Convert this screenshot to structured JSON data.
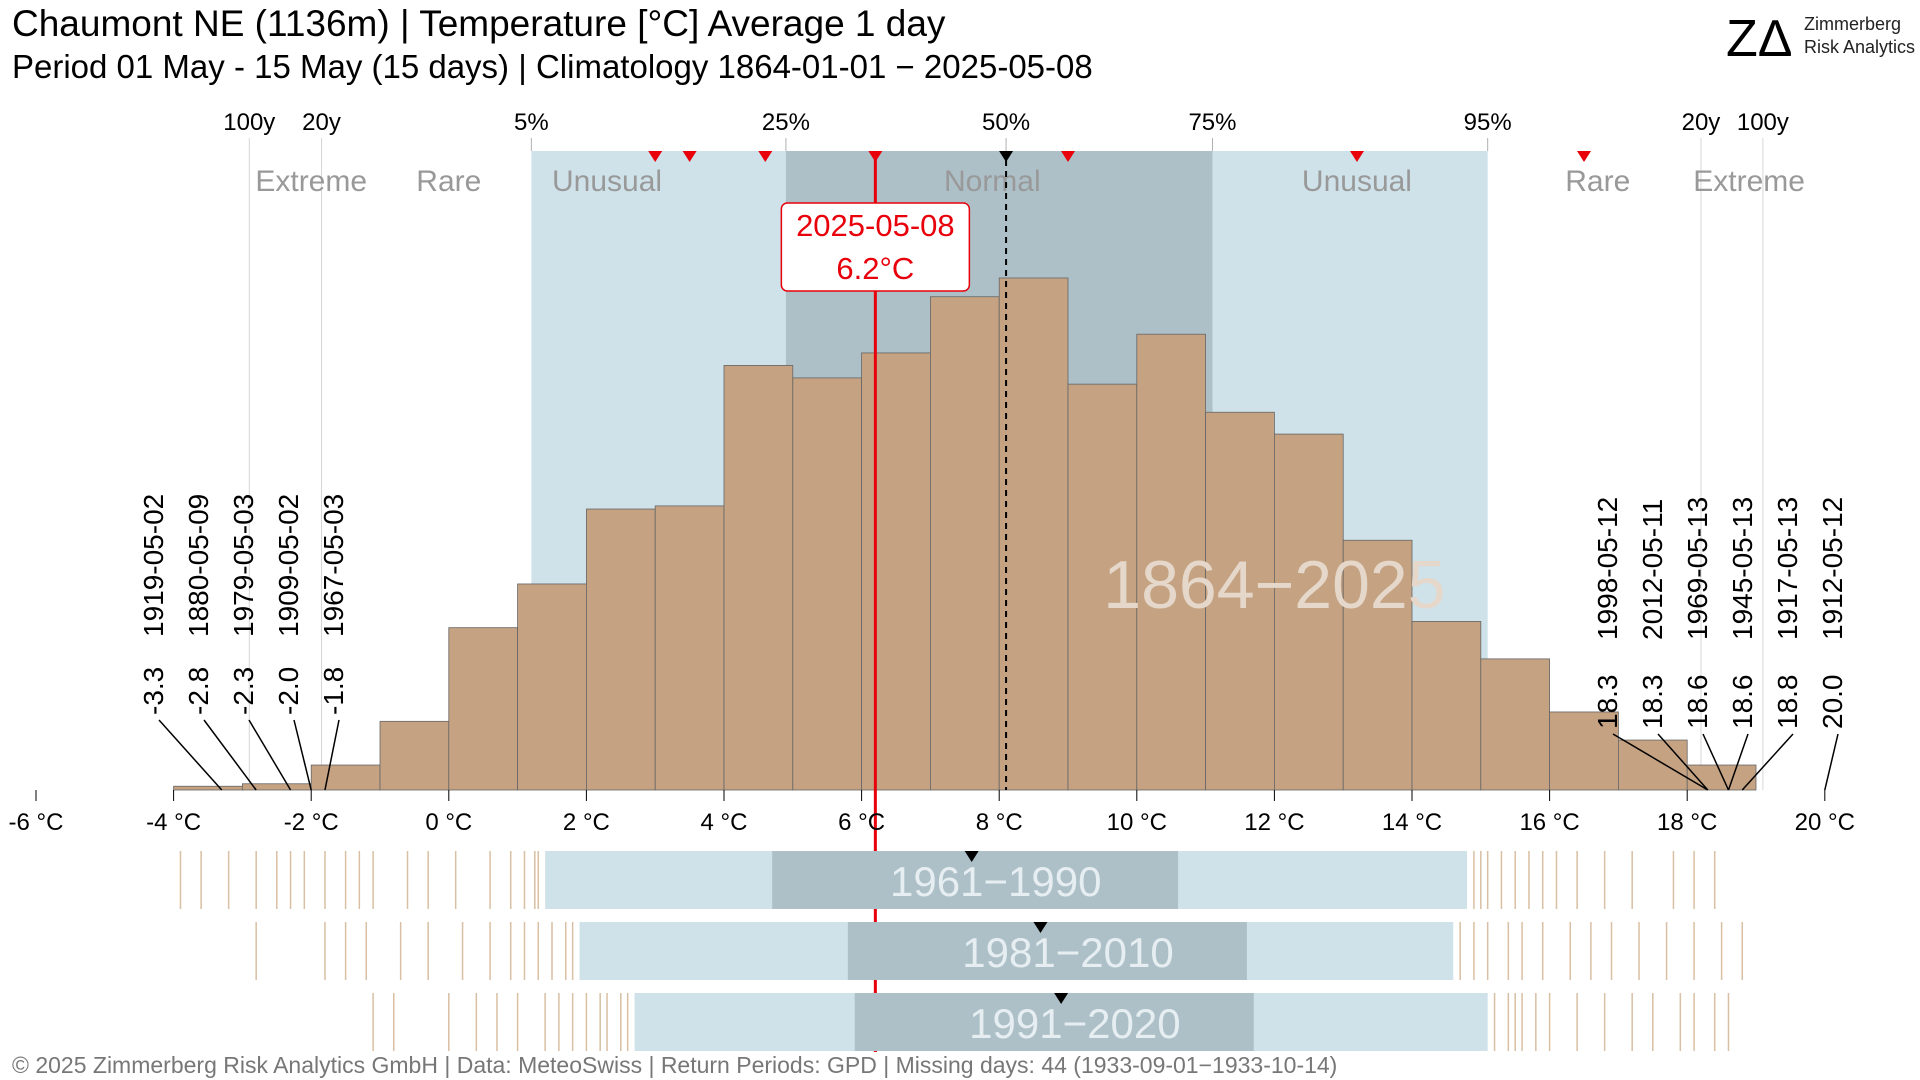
{
  "header": {
    "title": "Chaumont  NE (1136m) | Temperature [°C] Average 1 day",
    "subtitle": "Period 01 May - 15 May (15 days) | Climatology 1864-01-01 − 2025-05-08"
  },
  "logo": {
    "mark": "ZΔ",
    "line1": "Zimmerberg",
    "line2": "Risk Analytics"
  },
  "footer": "©  2025 Zimmerberg Risk Analytics GmbH | Data: MeteoSwiss | Return Periods: GPD | Missing days: 44 (1933-09-01−1933-10-14)",
  "colors": {
    "hist": "#c4a282",
    "hist_stroke": "#666666",
    "band_outer": "#cfe2ea",
    "band_inner": "#adc0c8",
    "highlight": "#e8000b",
    "muted_text": "#999999",
    "strip_line": "#d9bfa3"
  },
  "chart_data": {
    "type": "bar",
    "x_unit": "°C",
    "xlim": [
      -6,
      20
    ],
    "x_ticks": [
      {
        "v": -6,
        "label": "-6 °C"
      },
      {
        "v": -4,
        "label": "-4 °C"
      },
      {
        "v": -2,
        "label": "-2 °C"
      },
      {
        "v": 0,
        "label": "0 °C"
      },
      {
        "v": 2,
        "label": "2 °C"
      },
      {
        "v": 4,
        "label": "4 °C"
      },
      {
        "v": 6,
        "label": "6 °C"
      },
      {
        "v": 8,
        "label": "8 °C"
      },
      {
        "v": 10,
        "label": "10 °C"
      },
      {
        "v": 12,
        "label": "12 °C"
      },
      {
        "v": 14,
        "label": "14 °C"
      },
      {
        "v": 16,
        "label": "16 °C"
      },
      {
        "v": 18,
        "label": "18 °C"
      },
      {
        "v": 20,
        "label": "20 °C"
      }
    ],
    "histogram": {
      "label": "1864−2025",
      "bins": [
        {
          "x0": -4.0,
          "x1": -3.0,
          "h": 0.6
        },
        {
          "x0": -3.0,
          "x1": -2.0,
          "h": 1.0
        },
        {
          "x0": -2.0,
          "x1": -1.0,
          "h": 4.0
        },
        {
          "x0": -1.0,
          "x1": 0.0,
          "h": 11.0
        },
        {
          "x0": 0.0,
          "x1": 1.0,
          "h": 26.0
        },
        {
          "x0": 1.0,
          "x1": 2.0,
          "h": 33.0
        },
        {
          "x0": 2.0,
          "x1": 3.0,
          "h": 45.0
        },
        {
          "x0": 3.0,
          "x1": 4.0,
          "h": 45.5
        },
        {
          "x0": 4.0,
          "x1": 5.0,
          "h": 68.0
        },
        {
          "x0": 5.0,
          "x1": 6.0,
          "h": 66.0
        },
        {
          "x0": 6.0,
          "x1": 7.0,
          "h": 70.0
        },
        {
          "x0": 7.0,
          "x1": 8.0,
          "h": 79.0
        },
        {
          "x0": 8.0,
          "x1": 9.0,
          "h": 82.0
        },
        {
          "x0": 9.0,
          "x1": 10.0,
          "h": 65.0
        },
        {
          "x0": 10.0,
          "x1": 11.0,
          "h": 73.0
        },
        {
          "x0": 11.0,
          "x1": 12.0,
          "h": 60.5
        },
        {
          "x0": 12.0,
          "x1": 13.0,
          "h": 57.0
        },
        {
          "x0": 13.0,
          "x1": 14.0,
          "h": 40.0
        },
        {
          "x0": 14.0,
          "x1": 15.0,
          "h": 27.0
        },
        {
          "x0": 15.0,
          "x1": 16.0,
          "h": 21.0
        },
        {
          "x0": 16.0,
          "x1": 17.0,
          "h": 12.5
        },
        {
          "x0": 17.0,
          "x1": 18.0,
          "h": 8.0
        },
        {
          "x0": 18.0,
          "x1": 19.0,
          "h": 4.0
        }
      ],
      "ymax": 82.0
    },
    "percentiles": [
      {
        "label": "5%",
        "x": 1.2
      },
      {
        "label": "25%",
        "x": 4.9
      },
      {
        "label": "50%",
        "x": 8.1
      },
      {
        "label": "75%",
        "x": 11.1
      },
      {
        "label": "95%",
        "x": 15.1
      }
    ],
    "return_periods": [
      {
        "label": "100y",
        "x": -2.9
      },
      {
        "label": "20y",
        "x": -1.85
      },
      {
        "label": "20y",
        "x": 18.2
      },
      {
        "label": "100y",
        "x": 19.1
      }
    ],
    "zones": [
      {
        "label": "Extreme",
        "x": -2.0
      },
      {
        "label": "Rare",
        "x": 0.0
      },
      {
        "label": "Unusual",
        "x": 2.3
      },
      {
        "label": "Normal",
        "x": 7.9
      },
      {
        "label": "Unusual",
        "x": 13.2
      },
      {
        "label": "Rare",
        "x": 16.7
      },
      {
        "label": "Extreme",
        "x": 18.9
      }
    ],
    "markers_top": [
      {
        "x": 3.0,
        "color": "red"
      },
      {
        "x": 3.5,
        "color": "red"
      },
      {
        "x": 4.6,
        "color": "red"
      },
      {
        "x": 6.2,
        "color": "red"
      },
      {
        "x": 8.1,
        "color": "black"
      },
      {
        "x": 9.0,
        "color": "red"
      },
      {
        "x": 13.2,
        "color": "red"
      },
      {
        "x": 16.5,
        "color": "red"
      }
    ],
    "current": {
      "date": "2025-05-08",
      "value_label": "6.2°C",
      "x": 6.2
    },
    "median_x": 8.1,
    "extremes_low": [
      {
        "date": "1919-05-02",
        "value": "-3.3",
        "x": -3.3
      },
      {
        "date": "1880-05-09",
        "value": "-2.8",
        "x": -2.8
      },
      {
        "date": "1979-05-03",
        "value": "-2.3",
        "x": -2.3
      },
      {
        "date": "1909-05-02",
        "value": "-2.0",
        "x": -2.0
      },
      {
        "date": "1967-05-03",
        "value": "-1.8",
        "x": -1.8
      }
    ],
    "extremes_high": [
      {
        "date": "1998-05-12",
        "value": "18.3",
        "x": 18.3
      },
      {
        "date": "2012-05-11",
        "value": "18.3",
        "x": 18.3
      },
      {
        "date": "1969-05-13",
        "value": "18.6",
        "x": 18.6
      },
      {
        "date": "1945-05-13",
        "value": "18.6",
        "x": 18.6
      },
      {
        "date": "1917-05-13",
        "value": "18.8",
        "x": 18.8
      },
      {
        "date": "1912-05-12",
        "value": "20.0",
        "x": 20.0
      }
    ],
    "climatologies": [
      {
        "label": "1961−1990",
        "outer": [
          1.4,
          14.8
        ],
        "inner": [
          4.7,
          10.6
        ],
        "median": 7.6,
        "ticks_low": [
          -3.9,
          -3.6,
          -3.2,
          -2.8,
          -2.5,
          -2.3,
          -2.1,
          -1.8,
          -1.5,
          -1.3,
          -1.1,
          -0.6,
          -0.3,
          0.1,
          0.6,
          0.9,
          1.1,
          1.25,
          1.3
        ],
        "ticks_high": [
          14.9,
          15.0,
          15.1,
          15.3,
          15.5,
          15.7,
          15.9,
          16.1,
          16.4,
          16.8,
          17.2,
          17.8,
          18.1,
          18.4
        ]
      },
      {
        "label": "1981−2010",
        "outer": [
          1.9,
          14.6
        ],
        "inner": [
          5.8,
          11.6
        ],
        "median": 8.6,
        "ticks_low": [
          -2.8,
          -1.8,
          -1.5,
          -1.2,
          -0.7,
          -0.3,
          0.2,
          0.6,
          0.9,
          1.1,
          1.3,
          1.5,
          1.7,
          1.8
        ],
        "ticks_high": [
          14.7,
          14.9,
          15.1,
          15.4,
          15.6,
          15.9,
          16.3,
          16.6,
          16.9,
          17.3,
          17.7,
          18.1,
          18.5,
          18.8
        ]
      },
      {
        "label": "1991−2020",
        "outer": [
          2.7,
          15.1
        ],
        "inner": [
          5.9,
          11.7
        ],
        "median": 8.9,
        "ticks_low": [
          -1.1,
          -0.8,
          0.0,
          0.4,
          0.7,
          1.0,
          1.4,
          1.6,
          1.8,
          2.0,
          2.2,
          2.3,
          2.5,
          2.6
        ],
        "ticks_high": [
          15.2,
          15.4,
          15.5,
          15.6,
          15.8,
          16.0,
          16.4,
          16.8,
          17.2,
          17.5,
          17.9,
          18.1,
          18.4,
          18.6
        ]
      }
    ]
  }
}
